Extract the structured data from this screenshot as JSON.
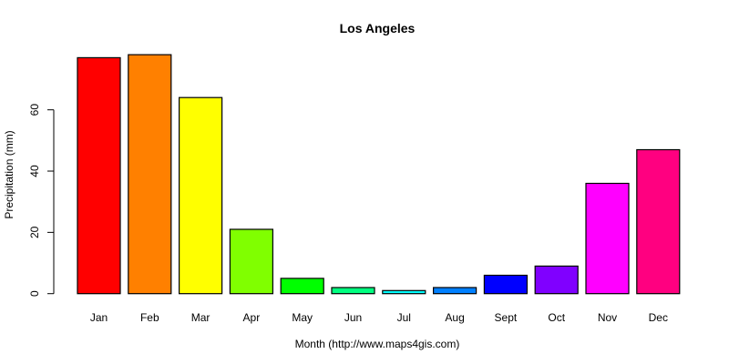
{
  "chart_data": {
    "type": "bar",
    "title": "Los Angeles",
    "xlabel": "Month (http://www.maps4gis.com)",
    "ylabel": "Precipitation (mm)",
    "categories": [
      "Jan",
      "Feb",
      "Mar",
      "Apr",
      "May",
      "Jun",
      "Jul",
      "Aug",
      "Sept",
      "Oct",
      "Nov",
      "Dec"
    ],
    "values": [
      77,
      78,
      64,
      21,
      5,
      2,
      1,
      2,
      6,
      9,
      36,
      47
    ],
    "colors": [
      "#FF0000",
      "#FF8000",
      "#FFFF00",
      "#80FF00",
      "#00FF00",
      "#00FF80",
      "#00FFFF",
      "#0080FF",
      "#0000FF",
      "#8000FF",
      "#FF00FF",
      "#FF0080"
    ],
    "yticks": [
      0,
      20,
      40,
      60
    ],
    "ylim": [
      0,
      80
    ],
    "grid": false,
    "legend": null
  }
}
